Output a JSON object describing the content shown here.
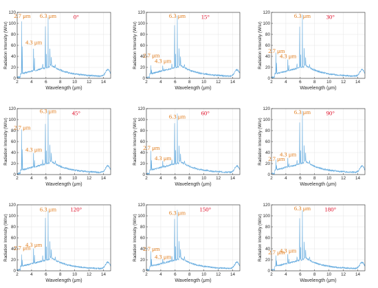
{
  "figure": {
    "series_color": "#6aaee0",
    "annotation_color": "#e07b1a",
    "angle_color": "#e0102a",
    "axis_color": "#262626"
  },
  "chart_data": [
    {
      "type": "line",
      "angle_label": "0°",
      "xlabel": "Wavelength (μm)",
      "ylabel": "Radiation Intensity (W/sr)",
      "xlim": [
        2,
        15
      ],
      "ylim": [
        0,
        120
      ],
      "xticks": [
        2,
        4,
        6,
        8,
        10,
        12,
        14
      ],
      "yticks": [
        0,
        20,
        40,
        60,
        80,
        100,
        120
      ],
      "grid": true,
      "legend": "none",
      "peaks": {
        "p2_7": 100,
        "p4_3": 57,
        "p5_9": 85,
        "p6_3": 102
      },
      "annotations": [
        {
          "text": "2.7 μm",
          "x": 2.7,
          "y": 110
        },
        {
          "text": "4.3 μm",
          "x": 4.3,
          "y": 62
        },
        {
          "text": "6.3 μm",
          "x": 6.3,
          "y": 110
        }
      ]
    },
    {
      "type": "line",
      "angle_label": "15°",
      "xlabel": "Wavelength (μm)",
      "ylabel": "Radiation Intensity (W/sr)",
      "xlim": [
        2,
        15
      ],
      "ylim": [
        0,
        120
      ],
      "xticks": [
        2,
        4,
        6,
        8,
        10,
        12,
        14
      ],
      "yticks": [
        0,
        20,
        40,
        60,
        80,
        100,
        120
      ],
      "grid": true,
      "legend": "none",
      "peaks": {
        "p2_7": 21,
        "p4_3": 20,
        "p5_9": 86,
        "p6_3": 103
      },
      "annotations": [
        {
          "text": "2.7 μm",
          "x": 2.7,
          "y": 38
        },
        {
          "text": "4.3 μm",
          "x": 4.3,
          "y": 28
        },
        {
          "text": "6.3 μm",
          "x": 6.3,
          "y": 110
        }
      ]
    },
    {
      "type": "line",
      "angle_label": "30°",
      "xlabel": "Wavelength (μm)",
      "ylabel": "Radiation Intensity (W/sr)",
      "xlim": [
        2,
        15
      ],
      "ylim": [
        0,
        120
      ],
      "xticks": [
        2,
        4,
        6,
        8,
        10,
        12,
        14
      ],
      "yticks": [
        0,
        20,
        40,
        60,
        80,
        100,
        120
      ],
      "grid": true,
      "legend": "none",
      "peaks": {
        "p2_7": 42,
        "p4_3": 33,
        "p5_9": 85,
        "p6_3": 106
      },
      "annotations": [
        {
          "text": "2.7 μm",
          "x": 2.7,
          "y": 46
        },
        {
          "text": "4.3 μm",
          "x": 4.3,
          "y": 37
        },
        {
          "text": "6.3 μm",
          "x": 6.3,
          "y": 110
        }
      ]
    },
    {
      "type": "line",
      "angle_label": "45°",
      "xlabel": "Wavelength (μm)",
      "ylabel": "Radiation Intensity (W/sr)",
      "xlim": [
        2,
        15
      ],
      "ylim": [
        0,
        120
      ],
      "xticks": [
        2,
        4,
        6,
        8,
        10,
        12,
        14
      ],
      "yticks": [
        0,
        20,
        40,
        60,
        80,
        100,
        120
      ],
      "grid": true,
      "legend": "none",
      "peaks": {
        "p2_7": 78,
        "p4_3": 38,
        "p5_9": 82,
        "p6_3": 108
      },
      "annotations": [
        {
          "text": "2.7 μm",
          "x": 2.7,
          "y": 82
        },
        {
          "text": "4.3 μm",
          "x": 4.3,
          "y": 42
        },
        {
          "text": "6.3 μm",
          "x": 6.3,
          "y": 112
        }
      ]
    },
    {
      "type": "line",
      "angle_label": "60°",
      "xlabel": "Wavelength (μm)",
      "ylabel": "Radiation Intensity (W/sr)",
      "xlim": [
        2,
        15
      ],
      "ylim": [
        0,
        120
      ],
      "xticks": [
        2,
        4,
        6,
        8,
        10,
        12,
        14
      ],
      "yticks": [
        0,
        20,
        40,
        60,
        80,
        100,
        120
      ],
      "grid": true,
      "legend": "none",
      "peaks": {
        "p2_7": 40,
        "p4_3": 22,
        "p5_9": 85,
        "p6_3": 100
      },
      "annotations": [
        {
          "text": "2.7 μm",
          "x": 2.7,
          "y": 45
        },
        {
          "text": "4.3 μm",
          "x": 4.3,
          "y": 26
        },
        {
          "text": "6.3 μm",
          "x": 6.3,
          "y": 102
        }
      ]
    },
    {
      "type": "line",
      "angle_label": "90°",
      "xlabel": "Wavelength (μm)",
      "ylabel": "Radiation Intensity (W/sr)",
      "xlim": [
        2,
        15
      ],
      "ylim": [
        0,
        120
      ],
      "xticks": [
        2,
        4,
        6,
        8,
        10,
        12,
        14
      ],
      "yticks": [
        0,
        20,
        40,
        60,
        80,
        100,
        120
      ],
      "grid": true,
      "legend": "none",
      "peaks": {
        "p2_7": 22,
        "p4_3": 28,
        "p5_9": 85,
        "p6_3": 106
      },
      "annotations": [
        {
          "text": "2.7 μm",
          "x": 2.7,
          "y": 25
        },
        {
          "text": "4.3 μm",
          "x": 4.3,
          "y": 33
        },
        {
          "text": "6.3 μm",
          "x": 6.3,
          "y": 110
        }
      ]
    },
    {
      "type": "line",
      "angle_label": "120°",
      "xlabel": "Wavelength (μm)",
      "ylabel": "Radiation Intensity (W/sr)",
      "xlim": [
        2,
        15
      ],
      "ylim": [
        0,
        120
      ],
      "xticks": [
        2,
        4,
        6,
        8,
        10,
        12,
        14
      ],
      "yticks": [
        0,
        20,
        40,
        60,
        80,
        100,
        120
      ],
      "grid": true,
      "legend": "none",
      "peaks": {
        "p2_7": 25,
        "p4_3": 40,
        "p5_9": 85,
        "p6_3": 100
      },
      "annotations": [
        {
          "text": "2.7 μm",
          "x": 2.7,
          "y": 38
        },
        {
          "text": "4.3 μm",
          "x": 4.3,
          "y": 44
        },
        {
          "text": "6.3 μm",
          "x": 6.3,
          "y": 108
        }
      ]
    },
    {
      "type": "line",
      "angle_label": "150°",
      "xlabel": "Wavelength (μm)",
      "ylabel": "Radiation Intensity (W/sr)",
      "xlim": [
        2,
        15
      ],
      "ylim": [
        0,
        120
      ],
      "xticks": [
        2,
        4,
        6,
        8,
        10,
        12,
        14
      ],
      "yticks": [
        0,
        20,
        40,
        60,
        80,
        100,
        120
      ],
      "grid": true,
      "legend": "none",
      "peaks": {
        "p2_7": 32,
        "p4_3": 18,
        "p5_9": 85,
        "p6_3": 100
      },
      "annotations": [
        {
          "text": "2.7 μm",
          "x": 2.7,
          "y": 36
        },
        {
          "text": "4.3 μm",
          "x": 4.3,
          "y": 22
        },
        {
          "text": "6.3 μm",
          "x": 6.3,
          "y": 102
        }
      ]
    },
    {
      "type": "line",
      "angle_label": "180°",
      "xlabel": "Wavelength (μm)",
      "ylabel": "Radiation Intensity (W/sr)",
      "xlim": [
        2,
        15
      ],
      "ylim": [
        0,
        120
      ],
      "xticks": [
        2,
        4,
        6,
        8,
        10,
        12,
        14
      ],
      "yticks": [
        0,
        20,
        40,
        60,
        80,
        100,
        120
      ],
      "grid": true,
      "legend": "none",
      "peaks": {
        "p2_7": 25,
        "p4_3": 28,
        "p5_9": 85,
        "p6_3": 100
      },
      "annotations": [
        {
          "text": "2.7 μm",
          "x": 2.7,
          "y": 30
        },
        {
          "text": "4.3 μm",
          "x": 4.3,
          "y": 33
        },
        {
          "text": "6.3 μm",
          "x": 6.3,
          "y": 110
        }
      ]
    }
  ]
}
